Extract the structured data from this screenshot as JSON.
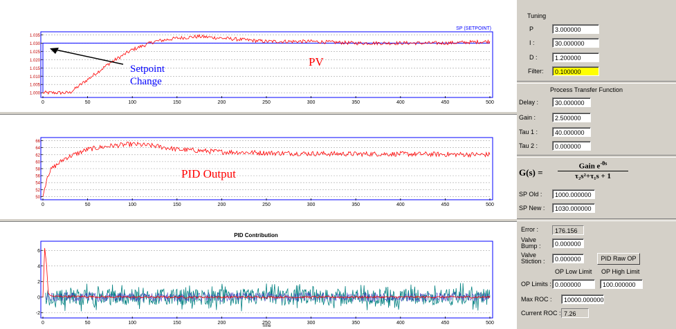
{
  "charts": {
    "pv": {
      "legend": "SP (SETPOINT)",
      "y_ticks": [
        "1.035",
        "1.030",
        "1.025",
        "1.020",
        "1.015",
        "1.010",
        "1.005",
        "1.000"
      ],
      "x_ticks": [
        "0",
        "50",
        "100",
        "150",
        "200",
        "250",
        "300",
        "350",
        "400",
        "450",
        "500"
      ],
      "annotation_setpoint_line1": "Setpoint",
      "annotation_setpoint_line2": "Change",
      "annotation_pv": "PV"
    },
    "output": {
      "y_ticks": [
        "66",
        "64",
        "62",
        "60",
        "58",
        "56",
        "54",
        "52",
        "50"
      ],
      "x_ticks": [
        "0",
        "50",
        "100",
        "150",
        "200",
        "250",
        "300",
        "350",
        "400",
        "450",
        "500"
      ],
      "annotation": "PID Output"
    },
    "contribution": {
      "title": "PID Contribution",
      "y_ticks": [
        "6",
        "4",
        "2",
        "0",
        "-2"
      ],
      "x_ticks": [
        "0",
        "50",
        "100",
        "150",
        "200",
        "250",
        "300",
        "350",
        "400",
        "450",
        "500"
      ],
      "xlabel": "Time"
    }
  },
  "chart_data": [
    {
      "type": "line",
      "legend": "SP (SETPOINT)",
      "xlim": [
        0,
        500
      ],
      "ylim": [
        0.998,
        1.036
      ],
      "series": [
        {
          "name": "SP (SETPOINT)",
          "x": [
            0,
            0,
            3,
            500
          ],
          "y": [
            1.0,
            1.03,
            1.03,
            1.03
          ],
          "color": "#0000ff"
        },
        {
          "name": "",
          "x": [
            0,
            30,
            50,
            75,
            100,
            125,
            150,
            175,
            200,
            250,
            300,
            350,
            400,
            450,
            500
          ],
          "y": [
            1.0,
            1.0,
            1.008,
            1.018,
            1.026,
            1.031,
            1.033,
            1.034,
            1.033,
            1.031,
            1.031,
            1.03,
            1.03,
            1.03,
            1.031
          ],
          "color": "#ff0000"
        }
      ]
    },
    {
      "type": "line",
      "xlim": [
        0,
        500
      ],
      "ylim": [
        49.5,
        66.5
      ],
      "series": [
        {
          "name": "",
          "x": [
            0,
            5,
            10,
            25,
            50,
            75,
            100,
            125,
            150,
            200,
            250,
            300,
            350,
            400,
            450,
            500
          ],
          "y": [
            50,
            56,
            58,
            61,
            63.5,
            64.5,
            65,
            64.5,
            63.5,
            62.8,
            62.5,
            62.3,
            62.2,
            62.2,
            62.1,
            62.0
          ],
          "color": "#ff0000"
        }
      ]
    },
    {
      "type": "line",
      "title": "PID Contribution",
      "xlabel": "Time",
      "xlim": [
        0,
        500
      ],
      "ylim": [
        -2.5,
        7
      ],
      "series": [
        {
          "name": "",
          "x": [
            0,
            2,
            4,
            6,
            10,
            100,
            200,
            300,
            400,
            500
          ],
          "y": [
            0,
            6.3,
            4.2,
            0.5,
            0.1,
            0,
            0,
            0,
            0,
            0
          ],
          "color": "#ff0000"
        },
        {
          "name": "",
          "x": [
            0,
            100,
            200,
            300,
            400,
            500
          ],
          "y": [
            0,
            0,
            0,
            0,
            0,
            0
          ],
          "color": "#008080",
          "note": "noise approx +/-1.7"
        }
      ]
    }
  ],
  "panel": {
    "tuning_title": "Tuning",
    "p_label": "P",
    "p_value": "3.000000",
    "i_label": "I :",
    "i_value": "30.000000",
    "d_label": "D :",
    "d_value": "1.200000",
    "filter_label": "Filter:",
    "filter_value": "0.100000",
    "ptf_title": "Process Transfer Function",
    "delay_label": "Delay :",
    "delay_value": "30.000000",
    "gain_label": "Gain :",
    "gain_value": "2.500000",
    "tau1_label": "Tau 1 :",
    "tau1_value": "40.000000",
    "tau2_label": "Tau 2 :",
    "tau2_value": "0.000000",
    "formula_lhs": "G(s) =",
    "formula_num": "Gain e",
    "formula_exp": "-θs",
    "formula_den": "τ₂s²+τ₁s + 1",
    "sp_old_label": "SP Old :",
    "sp_old_value": "1000.000000",
    "sp_new_label": "SP New :",
    "sp_new_value": "1030.000000",
    "error_label": "Error :",
    "error_value": "176.156",
    "valve_bump_label1": "Valve",
    "valve_bump_label2": "Bump :",
    "valve_bump_value": "0.000000",
    "valve_stiction_label1": "Valve",
    "valve_stiction_label2": "Stiction :",
    "valve_stiction_value": "0.000000",
    "pid_raw_op_button": "PID Raw OP",
    "op_low_limit_label": "OP Low Limit",
    "op_high_limit_label": "OP High Limit",
    "op_limits_label": "OP Limits :",
    "op_low_value": "0.000000",
    "op_high_value": "100.000000",
    "max_roc_label": "Max ROC :",
    "max_roc_value": "10000.000000",
    "current_roc_label": "Current  ROC :",
    "current_roc_value": "7.26"
  }
}
